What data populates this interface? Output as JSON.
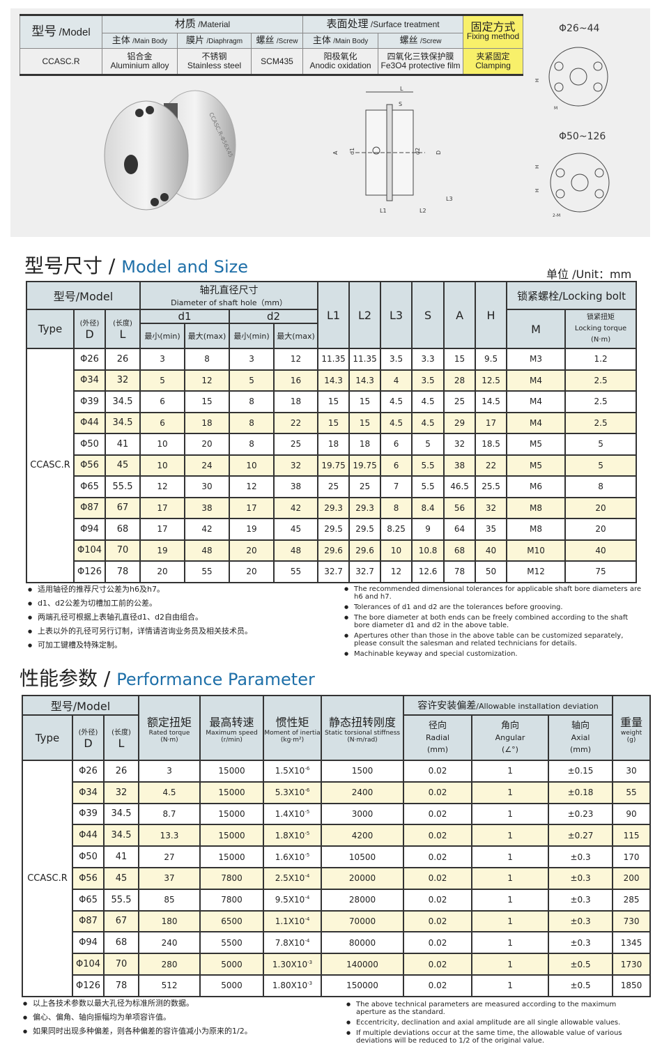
{
  "spec": {
    "model_h": "型号",
    "model_en": "/Model",
    "material": "材质",
    "material_en": "/Material",
    "surface": "表面处理",
    "surface_en": "/Surface treatment",
    "fixing": "固定方式",
    "fixing_en": "Fixing method",
    "sub": [
      [
        "主体",
        "/Main Body"
      ],
      [
        "膜片",
        "/Diaphragm"
      ],
      [
        "螺丝",
        "/Screw"
      ],
      [
        "主体",
        "/Main Body"
      ],
      [
        "螺丝",
        "/Screw"
      ]
    ],
    "model": "CCASC.R",
    "values": [
      [
        "铝合金",
        "Aluminium alloy"
      ],
      [
        "不锈钢",
        "Stainless steel"
      ],
      [
        "SCM435",
        ""
      ],
      [
        "阳极氧化",
        "Anodic oxidation"
      ],
      [
        "四氧化三铁保护膜",
        "Fe3O4 protective film"
      ],
      [
        "夹紧固定",
        "Clamping"
      ]
    ]
  },
  "product_label": "CCASC.R-Φ56X45",
  "drawing": {
    "range1": "Φ26~44",
    "range2": "Φ50~126",
    "labels": [
      "L",
      "S",
      "A",
      "d1",
      "d2",
      "D",
      "L1",
      "L2",
      "L3",
      "H",
      "M",
      "2-M"
    ]
  },
  "size": {
    "title_zh": "型号尺寸",
    "title_en": "Model and Size",
    "unit": "单位 /Unit：mm",
    "h_model": "型号/Model",
    "h_shaft": "轴孔直径尺寸",
    "h_shaft_en": "Diameter of shaft hole（mm）",
    "h_type": "Type",
    "h_outer": "(外径)",
    "h_D": "D",
    "h_len": "(长度)",
    "h_L": "L",
    "h_d1": "d1",
    "h_d2": "d2",
    "h_min": "最小(min)",
    "h_max": "最大(max)",
    "h_cols": [
      "L1",
      "L2",
      "L3",
      "S",
      "A",
      "H"
    ],
    "h_bolt": "锁紧螺栓/Locking bolt",
    "h_M": "M",
    "h_torque_zh": "锁紧扭矩",
    "h_torque_en": "Locking torque",
    "h_torque_unit": "(N·m)",
    "type": "CCASC.R",
    "rows": [
      [
        "Φ26",
        "26",
        "3",
        "8",
        "3",
        "12",
        "11.35",
        "11.35",
        "3.5",
        "3.3",
        "15",
        "9.5",
        "M3",
        "1.2"
      ],
      [
        "Φ34",
        "32",
        "5",
        "12",
        "5",
        "16",
        "14.3",
        "14.3",
        "4",
        "3.5",
        "28",
        "12.5",
        "M4",
        "2.5"
      ],
      [
        "Φ39",
        "34.5",
        "6",
        "15",
        "8",
        "18",
        "15",
        "15",
        "4.5",
        "4.5",
        "25",
        "14.5",
        "M4",
        "2.5"
      ],
      [
        "Φ44",
        "34.5",
        "6",
        "18",
        "8",
        "22",
        "15",
        "15",
        "4.5",
        "4.5",
        "29",
        "17",
        "M4",
        "2.5"
      ],
      [
        "Φ50",
        "41",
        "10",
        "20",
        "8",
        "25",
        "18",
        "18",
        "6",
        "5",
        "32",
        "18.5",
        "M5",
        "5"
      ],
      [
        "Φ56",
        "45",
        "10",
        "24",
        "10",
        "32",
        "19.75",
        "19.75",
        "6",
        "5.5",
        "38",
        "22",
        "M5",
        "5"
      ],
      [
        "Φ65",
        "55.5",
        "12",
        "30",
        "12",
        "38",
        "25",
        "25",
        "7",
        "5.5",
        "46.5",
        "25.5",
        "M6",
        "8"
      ],
      [
        "Φ87",
        "67",
        "17",
        "38",
        "17",
        "42",
        "29.3",
        "29.3",
        "8",
        "8.4",
        "56",
        "32",
        "M8",
        "20"
      ],
      [
        "Φ94",
        "68",
        "17",
        "42",
        "19",
        "45",
        "29.5",
        "29.5",
        "8.25",
        "9",
        "64",
        "35",
        "M8",
        "20"
      ],
      [
        "Φ104",
        "70",
        "19",
        "48",
        "20",
        "48",
        "29.6",
        "29.6",
        "10",
        "10.8",
        "68",
        "40",
        "M10",
        "40"
      ],
      [
        "Φ126",
        "78",
        "20",
        "55",
        "20",
        "55",
        "32.7",
        "32.7",
        "12",
        "12.6",
        "78",
        "50",
        "M12",
        "75"
      ]
    ],
    "notes_zh": [
      "适用轴径的推荐尺寸公差为h6及h7。",
      "d1、d2公差为切槽加工前的公差。",
      "两端孔径可根据上表轴孔直径d1、d2自由组合。",
      "上表以外的孔径可另行订制，详情请咨询业务员及相关技术员。",
      "可加工键槽及特殊定制。"
    ],
    "notes_en": [
      "The recommended dimensional tolerances for applicable shaft bore diameters are h6 and h7.",
      "Tolerances of d1 and d2 are the tolerances before grooving.",
      "The bore diameter at both ends can be freely combined according to the shaft bore diameter d1 and d2 in the above table.",
      "Apertures other than those in the above table can be customized separately, please consult the salesman and related technicians for details.",
      "Machinable keyway and special customization."
    ]
  },
  "perf": {
    "title_zh": "性能参数",
    "title_en": "Performance Parameter",
    "h_model": "型号/Model",
    "h_type": "Type",
    "h_outer": "(外径)",
    "h_D": "D",
    "h_len": "(长度)",
    "h_L": "L",
    "cols": [
      [
        "额定扭矩",
        "Rated torque",
        "(N·m)"
      ],
      [
        "最高转速",
        "Maximum speed",
        "(r/min)"
      ],
      [
        "惯性矩",
        "Moment of inertia",
        "(kg·m²)"
      ],
      [
        "静态扭转刚度",
        "Static torsional stiffness",
        "(N·m/rad)"
      ]
    ],
    "h_dev": "容许安装偏差",
    "h_dev_en": "/Allowable installation deviation",
    "dev": [
      [
        "径向",
        "Radial",
        "(mm)"
      ],
      [
        "角向",
        "Angular",
        "(∠°)"
      ],
      [
        "轴向",
        "Axial",
        "(mm)"
      ]
    ],
    "h_weight": "重量",
    "h_weight_en": "weight",
    "h_weight_unit": "(g)",
    "type": "CCASC.R",
    "rows": [
      [
        "Φ26",
        "26",
        "3",
        "15000",
        "1.5X10",
        "-6",
        "1500",
        "0.02",
        "1",
        "±0.15",
        "30"
      ],
      [
        "Φ34",
        "32",
        "4.5",
        "15000",
        "5.3X10",
        "-6",
        "2400",
        "0.02",
        "1",
        "±0.18",
        "55"
      ],
      [
        "Φ39",
        "34.5",
        "8.7",
        "15000",
        "1.4X10",
        "-5",
        "3000",
        "0.02",
        "1",
        "±0.23",
        "90"
      ],
      [
        "Φ44",
        "34.5",
        "13.3",
        "15000",
        "1.8X10",
        "-5",
        "4200",
        "0.02",
        "1",
        "±0.27",
        "115"
      ],
      [
        "Φ50",
        "41",
        "27",
        "15000",
        "1.6X10",
        "-5",
        "10500",
        "0.02",
        "1",
        "±0.3",
        "170"
      ],
      [
        "Φ56",
        "45",
        "37",
        "7800",
        "2.5X10",
        "-4",
        "20000",
        "0.02",
        "1",
        "±0.3",
        "200"
      ],
      [
        "Φ65",
        "55.5",
        "85",
        "7800",
        "9.5X10",
        "-4",
        "28000",
        "0.02",
        "1",
        "±0.3",
        "285"
      ],
      [
        "Φ87",
        "67",
        "180",
        "6500",
        "1.1X10",
        "-4",
        "70000",
        "0.02",
        "1",
        "±0.3",
        "730"
      ],
      [
        "Φ94",
        "68",
        "240",
        "5500",
        "7.8X10",
        "-4",
        "80000",
        "0.02",
        "1",
        "±0.3",
        "1345"
      ],
      [
        "Φ104",
        "70",
        "280",
        "5000",
        "1.30X10",
        "-3",
        "140000",
        "0.02",
        "1",
        "±0.5",
        "1730"
      ],
      [
        "Φ126",
        "78",
        "512",
        "5000",
        "1.80X10",
        "-3",
        "150000",
        "0.02",
        "1",
        "±0.5",
        "1850"
      ]
    ],
    "notes_zh": [
      "以上各技术参数以最大孔径为标准所测的数据。",
      "偏心、偏角、轴向振幅均为单项容许值。",
      "如果同时出现多种偏差，则各种偏差的容许值减小为原来的1/2。"
    ],
    "notes_en": [
      "The above technical parameters are measured according to the maximum aperture as the standard.",
      "Eccentricity, declination and axial amplitude are all single allowable values.",
      "If multiple deviations occur at the same time, the allowable value of various deviations will be reduced to 1/2 of the original value."
    ]
  }
}
